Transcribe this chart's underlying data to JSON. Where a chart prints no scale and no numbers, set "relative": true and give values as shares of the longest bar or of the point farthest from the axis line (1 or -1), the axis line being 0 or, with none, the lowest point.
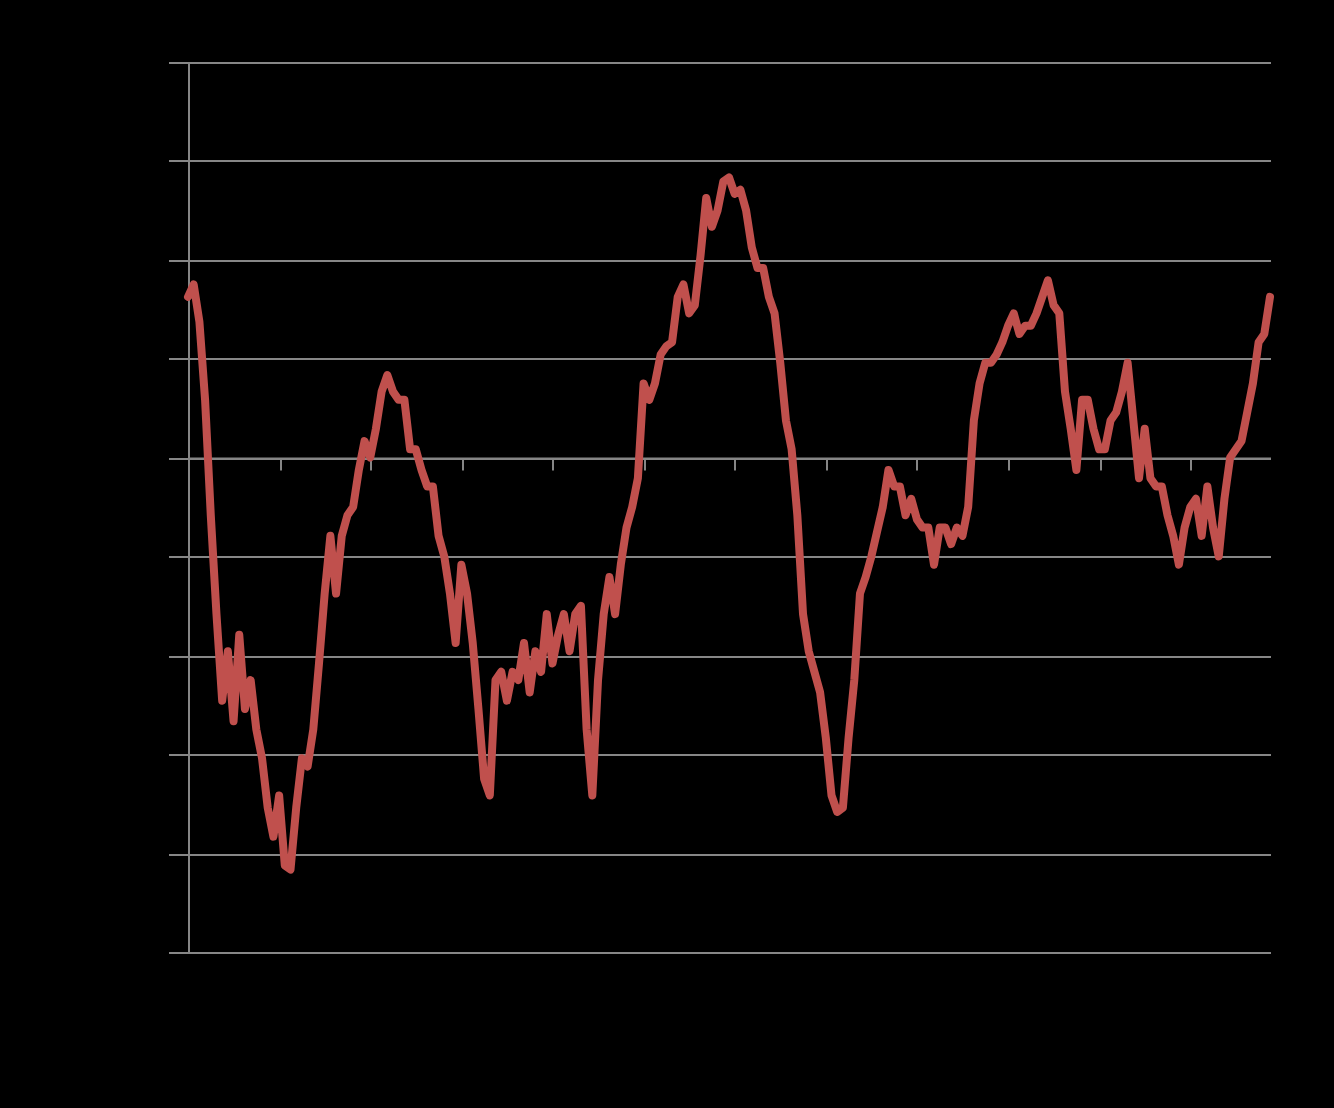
{
  "chart_data": {
    "type": "line",
    "relative": true,
    "grid": "y",
    "line_style": "solid",
    "marker": "none",
    "categories": [
      null,
      null,
      null,
      null,
      null,
      null,
      null,
      null,
      null,
      null,
      null,
      null,
      null,
      null,
      null,
      null,
      null,
      null,
      null,
      null,
      null,
      null,
      null,
      null,
      null,
      null,
      null,
      null,
      null,
      null,
      null,
      null,
      null,
      null,
      null,
      null,
      null,
      null,
      null,
      null,
      null,
      null,
      null,
      null,
      null,
      null,
      null,
      null,
      null,
      null,
      null,
      null,
      null,
      null,
      null,
      null,
      null,
      null,
      null,
      null,
      null,
      null,
      null,
      null,
      null,
      null,
      null,
      null,
      null,
      null,
      null,
      null,
      null,
      null,
      null,
      null,
      null,
      null,
      null,
      null,
      null,
      null,
      null,
      null,
      null,
      null,
      null,
      null,
      null,
      null,
      null,
      null,
      null,
      null,
      null,
      null,
      null,
      null,
      null,
      null,
      null,
      null,
      null,
      null,
      null,
      null,
      null,
      null,
      null,
      null,
      null,
      null,
      null,
      null,
      null,
      null,
      null,
      null,
      null,
      null,
      null,
      null,
      null,
      null,
      null,
      null,
      null,
      null,
      null,
      null,
      null,
      null,
      null,
      null,
      null,
      null,
      null,
      null,
      null,
      null,
      null,
      null,
      null,
      null,
      null,
      null,
      null,
      null,
      null,
      null,
      null,
      null,
      null,
      null,
      null,
      null,
      null,
      null,
      null,
      null,
      null,
      null,
      null,
      null,
      null,
      null,
      null,
      null,
      null,
      null,
      null,
      null,
      null,
      null,
      null,
      null,
      null,
      null,
      null,
      null,
      null,
      null,
      null,
      null,
      null,
      null,
      null,
      null,
      null,
      null,
      null
    ],
    "series": [
      {
        "color": "#c0504d",
        "values": [
          0.39,
          0.42,
          0.33,
          0.14,
          -0.14,
          -0.38,
          -0.59,
          -0.47,
          -0.64,
          -0.43,
          -0.61,
          -0.54,
          -0.66,
          -0.73,
          -0.85,
          -0.92,
          -0.82,
          -0.99,
          -1,
          -0.85,
          -0.73,
          -0.75,
          -0.66,
          -0.5,
          -0.33,
          -0.19,
          -0.33,
          -0.19,
          -0.14,
          -0.12,
          -0.03,
          0.04,
          0,
          0.07,
          0.16,
          0.2,
          0.16,
          0.14,
          0.14,
          0.02,
          0.02,
          -0.03,
          -0.07,
          -0.07,
          -0.19,
          -0.24,
          -0.33,
          -0.45,
          -0.26,
          -0.33,
          -0.45,
          -0.61,
          -0.78,
          -0.82,
          -0.54,
          -0.52,
          -0.59,
          -0.52,
          -0.54,
          -0.45,
          -0.57,
          -0.47,
          -0.52,
          -0.38,
          -0.5,
          -0.43,
          -0.38,
          -0.47,
          -0.38,
          -0.36,
          -0.66,
          -0.82,
          -0.54,
          -0.38,
          -0.29,
          -0.38,
          -0.26,
          -0.17,
          -0.12,
          -0.05,
          0.18,
          0.14,
          0.18,
          0.25,
          0.27,
          0.28,
          0.39,
          0.42,
          0.35,
          0.37,
          0.49,
          0.63,
          0.56,
          0.6,
          0.67,
          0.68,
          0.64,
          0.65,
          0.6,
          0.51,
          0.46,
          0.46,
          0.39,
          0.35,
          0.23,
          0.09,
          0.02,
          -0.14,
          -0.38,
          -0.47,
          -0.52,
          -0.57,
          -0.68,
          -0.82,
          -0.86,
          -0.85,
          -0.68,
          -0.54,
          -0.33,
          -0.29,
          -0.24,
          -0.18,
          -0.12,
          -0.03,
          -0.07,
          -0.07,
          -0.14,
          -0.1,
          -0.15,
          -0.17,
          -0.17,
          -0.26,
          -0.17,
          -0.17,
          -0.21,
          -0.17,
          -0.19,
          -0.12,
          0.09,
          0.18,
          0.23,
          0.23,
          0.25,
          0.28,
          0.32,
          0.35,
          0.3,
          0.32,
          0.32,
          0.35,
          0.39,
          0.43,
          0.37,
          0.35,
          0.16,
          0.07,
          -0.03,
          0.14,
          0.14,
          0.07,
          0.02,
          0.02,
          0.09,
          0.11,
          0.16,
          0.23,
          0.09,
          -0.05,
          0.07,
          -0.05,
          -0.07,
          -0.07,
          -0.14,
          -0.19,
          -0.26,
          -0.17,
          -0.12,
          -0.1,
          -0.19,
          -0.07,
          -0.17,
          -0.24,
          -0.1,
          0,
          0.02,
          0.04,
          0.11,
          0.18,
          0.28,
          0.3,
          0.39
        ]
      }
    ]
  }
}
